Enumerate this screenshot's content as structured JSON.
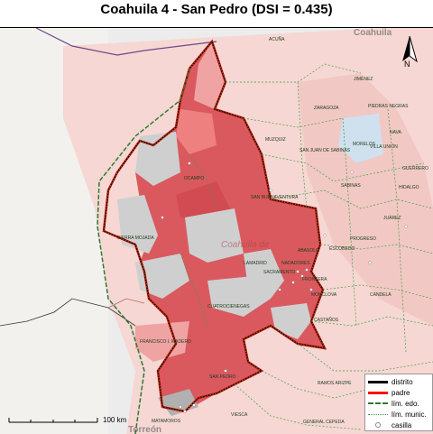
{
  "title": "Coahuila 4 - San Pedro (DSI = 0.435)",
  "state_label": "Coahuila de",
  "corner_labels": {
    "top_right": "Coahuila",
    "bottom_left": "Torreón"
  },
  "municipality_labels": [
    "ACUÑA",
    "JIMÉNEZ",
    "ZARAGOZA",
    "PIEDRAS NEGRAS",
    "NAVA",
    "MUZQUIZ",
    "MORELOS",
    "VILLA UNIÓN",
    "GUERRERO",
    "OCAMPO",
    "SAN JUAN DE SABINAS",
    "SABINAS",
    "HIDALGO",
    "SAN BUENAVENTURA",
    "JUÁREZ",
    "SIERRA MOJADA",
    "PROGRESO",
    "ESCOBEDO",
    "ABASOLO",
    "NADADORES",
    "SACRAMENTO",
    "LAMADRID",
    "FRONTERA",
    "MONCLOVA",
    "CANDELA",
    "CUATROCIENEGAS",
    "CASTAÑOS",
    "FRANCISCO I. MADERO",
    "SAN PEDRO",
    "RAMOS ARIZPE",
    "MATAMOROS",
    "VIESCA",
    "GENERAL CEPEDA"
  ],
  "legend": {
    "items": [
      {
        "label": "distrito",
        "color": "#000000",
        "style": "solid-thick"
      },
      {
        "label": "padre",
        "color": "#ff0000",
        "style": "solid-thick"
      },
      {
        "label": "lím. edo.",
        "color": "#2f7a2f",
        "style": "dashed"
      },
      {
        "label": "lím. munic.",
        "color": "#3ca13c",
        "style": "dotted"
      },
      {
        "label": "casilla",
        "color": "#888888",
        "style": "point"
      }
    ]
  },
  "scale": {
    "label": "100 km",
    "fraction_of_bar": 1.0
  },
  "north": {
    "label": "N"
  },
  "colors": {
    "district_fill": "#d9595f",
    "district_light": "#f0a3a3",
    "outside_fill": "#f6d7d4",
    "gray_area": "#cfcfcf",
    "water": "#a9c8df",
    "land_west": "#eeeeea"
  }
}
